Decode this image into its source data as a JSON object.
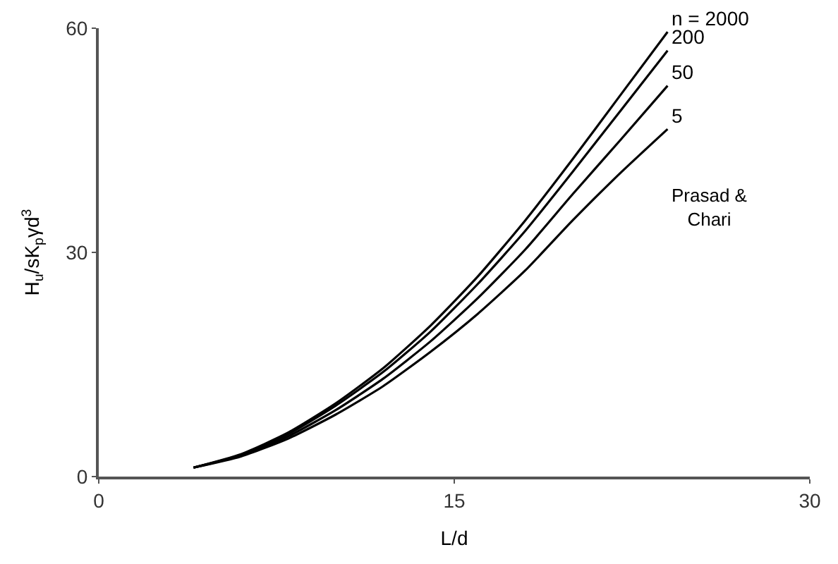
{
  "chart_data": {
    "type": "line",
    "xlabel": "L/d",
    "ylabel": "H$_{u}$/sK$_{p}$γd$^{3}$",
    "x": [
      4,
      6,
      8,
      10,
      12,
      14,
      16,
      18,
      20,
      22,
      24
    ],
    "series": [
      {
        "name": "n = 2000",
        "color": "#000000",
        "values": [
          1.2,
          3.0,
          5.9,
          9.8,
          14.5,
          20.2,
          26.8,
          34.3,
          42.5,
          51.0,
          59.5
        ]
      },
      {
        "name": "200",
        "color": "#000000",
        "values": [
          1.2,
          2.9,
          5.7,
          9.5,
          14.0,
          19.4,
          25.8,
          32.9,
          40.8,
          48.9,
          57.0
        ]
      },
      {
        "name": "50",
        "color": "#000000",
        "values": [
          1.2,
          2.8,
          5.4,
          8.9,
          13.1,
          18.1,
          23.9,
          30.4,
          37.8,
          45.0,
          52.3
        ]
      },
      {
        "name": "5",
        "color": "#000000",
        "values": [
          1.2,
          2.7,
          5.1,
          8.3,
          12.1,
          16.7,
          21.8,
          27.6,
          34.3,
          40.6,
          46.5
        ]
      }
    ],
    "annotations": [
      "Prasad & Chari"
    ],
    "xlim": [
      0,
      30
    ],
    "xticks": [
      0,
      15,
      30
    ],
    "ylim": [
      0,
      60
    ],
    "yticks": [
      0,
      30,
      60
    ],
    "legend": false,
    "marker": "none",
    "line_style": "solid"
  }
}
